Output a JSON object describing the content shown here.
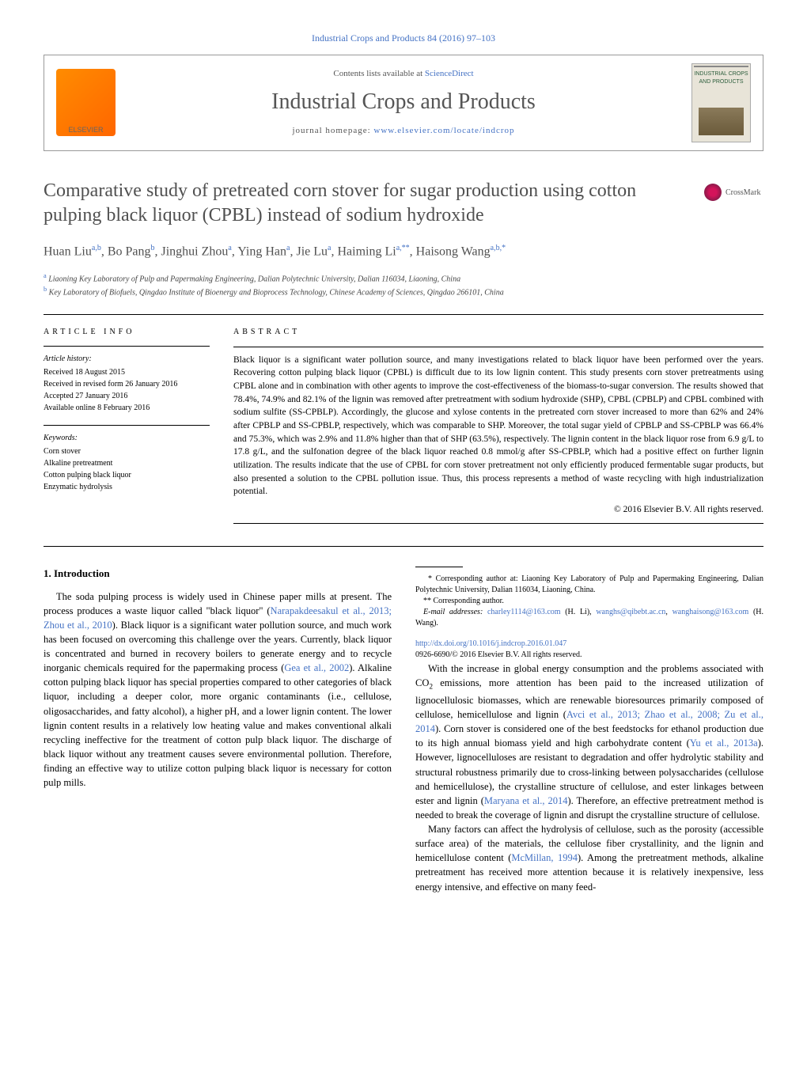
{
  "header": {
    "journal_ref": "Industrial Crops and Products 84 (2016) 97–103",
    "contents_prefix": "Contents lists available at ",
    "contents_link": "ScienceDirect",
    "journal_name": "Industrial Crops and Products",
    "homepage_prefix": "journal homepage: ",
    "homepage_link": "www.elsevier.com/locate/indcrop",
    "cover_text": "INDUSTRIAL CROPS AND PRODUCTS"
  },
  "crossmark_label": "CrossMark",
  "title": "Comparative study of pretreated corn stover for sugar production using cotton pulping black liquor (CPBL) instead of sodium hydroxide",
  "authors_html": "Huan Liu<sup>a,b</sup>, Bo Pang<sup>b</sup>, Jinghui Zhou<sup>a</sup>, Ying Han<sup>a</sup>, Jie Lu<sup>a</sup>, Haiming Li<sup>a,**</sup>, Haisong Wang<sup>a,b,*</sup>",
  "affiliations": [
    {
      "sup": "a",
      "text": "Liaoning Key Laboratory of Pulp and Papermaking Engineering, Dalian Polytechnic University, Dalian 116034, Liaoning, China"
    },
    {
      "sup": "b",
      "text": "Key Laboratory of Biofuels, Qingdao Institute of Bioenergy and Bioprocess Technology, Chinese Academy of Sciences, Qingdao 266101, China"
    }
  ],
  "article_info": {
    "label": "ARTICLE INFO",
    "history_label": "Article history:",
    "history": [
      "Received 18 August 2015",
      "Received in revised form 26 January 2016",
      "Accepted 27 January 2016",
      "Available online 8 February 2016"
    ],
    "keywords_label": "Keywords:",
    "keywords": [
      "Corn stover",
      "Alkaline pretreatment",
      "Cotton pulping black liquor",
      "Enzymatic hydrolysis"
    ]
  },
  "abstract": {
    "label": "ABSTRACT",
    "text": "Black liquor is a significant water pollution source, and many investigations related to black liquor have been performed over the years. Recovering cotton pulping black liquor (CPBL) is difficult due to its low lignin content. This study presents corn stover pretreatments using CPBL alone and in combination with other agents to improve the cost-effectiveness of the biomass-to-sugar conversion. The results showed that 78.4%, 74.9% and 82.1% of the lignin was removed after pretreatment with sodium hydroxide (SHP), CPBL (CPBLP) and CPBL combined with sodium sulfite (SS-CPBLP). Accordingly, the glucose and xylose contents in the pretreated corn stover increased to more than 62% and 24% after CPBLP and SS-CPBLP, respectively, which was comparable to SHP. Moreover, the total sugar yield of CPBLP and SS-CPBLP was 66.4% and 75.3%, which was 2.9% and 11.8% higher than that of SHP (63.5%), respectively. The lignin content in the black liquor rose from 6.9 g/L to 17.8 g/L, and the sulfonation degree of the black liquor reached 0.8 mmol/g after SS-CPBLP, which had a positive effect on further lignin utilization. The results indicate that the use of CPBL for corn stover pretreatment not only efficiently produced fermentable sugar products, but also presented a solution to the CPBL pollution issue. Thus, this process represents a method of waste recycling with high industrialization potential.",
    "copyright": "© 2016 Elsevier B.V. All rights reserved."
  },
  "intro": {
    "heading": "1.  Introduction",
    "p1_a": "The soda pulping process is widely used in Chinese paper mills at present. The process produces a waste liquor called \"black liquor\" (",
    "p1_cite1": "Narapakdeesakul et al., 2013; Zhou et al., 2010",
    "p1_b": "). Black liquor is a significant water pollution source, and much work has been focused on overcoming this challenge over the years. Currently, black liquor is concentrated and burned in recovery boilers to generate energy and to recycle inorganic chemicals required for the papermaking process (",
    "p1_cite2": "Gea et al., 2002",
    "p1_c": "). Alkaline cotton pulping black liquor has special properties compared to other categories of black liquor, including a deeper color, more organic contaminants (i.e., cellulose, oligosaccharides, and fatty alcohol), a higher pH, and a lower lignin content. The lower lignin content results in a relatively low heating value and makes conventional alkali recycling ineffective for the treatment of cotton pulp black liquor. The discharge of black liquor without any treatment causes severe environmental pollution. Therefore, finding an effective way to utilize cotton pulping black liquor is necessary for cotton pulp mills.",
    "p2_a": "With the increase in global energy consumption and the problems associated with CO",
    "p2_sub": "2",
    "p2_b": " emissions, more attention has been paid to the increased utilization of lignocellulosic biomasses, which are renewable bioresources primarily composed of cellulose, hemicellulose and lignin (",
    "p2_cite1": "Avci et al., 2013; Zhao et al., 2008; Zu et al., 2014",
    "p2_c": "). Corn stover is considered one of the best feedstocks for ethanol production due to its high annual biomass yield and high carbohydrate content (",
    "p2_cite2": "Yu et al., 2013a",
    "p2_d": "). However, lignocelluloses are resistant to degradation and offer hydrolytic stability and structural robustness primarily due to cross-linking between polysaccharides (cellulose and hemicellulose), the crystalline structure of cellulose, and ester linkages between ester and lignin (",
    "p2_cite3": "Maryana et al., 2014",
    "p2_e": "). Therefore, an effective pretreatment method is needed to break the coverage of lignin and disrupt the crystalline structure of cellulose.",
    "p3_a": "Many factors can affect the hydrolysis of cellulose, such as the porosity (accessible surface area) of the materials, the cellulose fiber crystallinity, and the lignin and hemicellulose content (",
    "p3_cite1": "McMillan, 1994",
    "p3_b": "). Among the pretreatment methods, alkaline pretreatment has received more attention because it is relatively inexpensive, less energy intensive, and effective on many feed-"
  },
  "footnotes": {
    "corr1": "* Corresponding author at: Liaoning Key Laboratory of Pulp and Papermaking Engineering, Dalian Polytechnic University, Dalian 116034, Liaoning, China.",
    "corr2": "** Corresponding author.",
    "email_label": "E-mail addresses: ",
    "email1": "charley1114@163.com",
    "email1_who": " (H. Li), ",
    "email2": "wanghs@qibebt.ac.cn",
    "email_sep": ", ",
    "email3": "wanghaisong@163.com",
    "email3_who": " (H. Wang)."
  },
  "doi": {
    "link": "http://dx.doi.org/10.1016/j.indcrop.2016.01.047",
    "issn_line": "0926-6690/© 2016 Elsevier B.V. All rights reserved."
  },
  "colors": {
    "link": "#4472c4",
    "text": "#000000",
    "title_gray": "#505050",
    "elsevier_orange": "#ff6600"
  }
}
